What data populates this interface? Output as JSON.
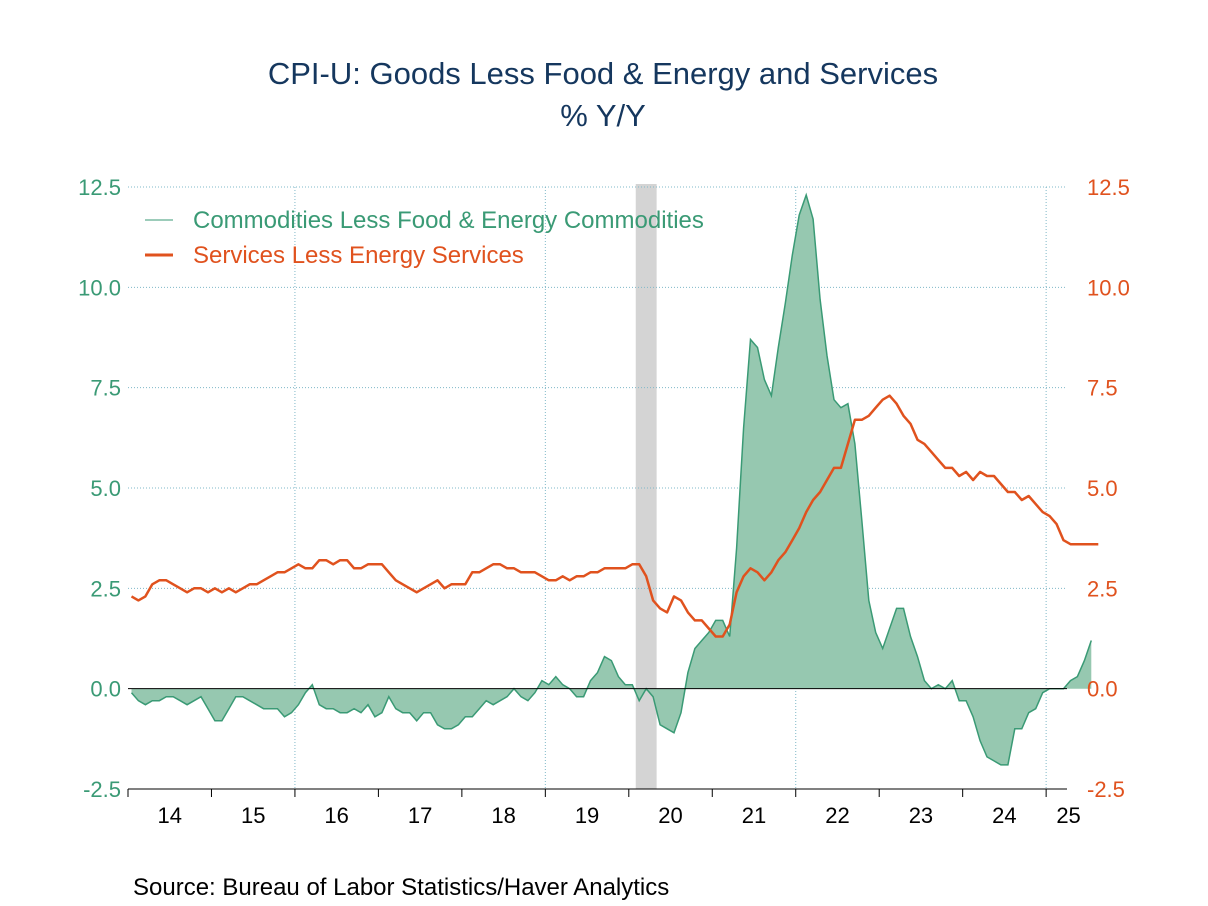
{
  "title_line1": "CPI-U: Goods Less Food & Energy and Services",
  "title_line2": "% Y/Y",
  "source": "Source:  Bureau of Labor Statistics/Haver Analytics",
  "colors": {
    "title": "#15375e",
    "commodities": "#3a9a75",
    "commodities_fill": "#96c8b0",
    "services": "#e0521e",
    "grid": "#7fb8c8",
    "recession": "#d4d4d4",
    "axis": "#000000",
    "year_labels": "#000000"
  },
  "chart_data": {
    "type": "line",
    "x_tick_labels": [
      "14",
      "15",
      "16",
      "17",
      "18",
      "19",
      "20",
      "21",
      "22",
      "23",
      "24",
      "25"
    ],
    "y_left": {
      "ylim": [
        -2.5,
        12.5
      ],
      "tick_labels": [
        "12.5",
        "10.0",
        "7.5",
        "5.0",
        "2.5",
        "0.0",
        "-2.5"
      ]
    },
    "y_right": {
      "ylim": [
        -2.5,
        12.5
      ],
      "tick_labels": [
        "12.5",
        "10.0",
        "7.5",
        "5.0",
        "2.5",
        "0.0",
        "-2.5"
      ]
    },
    "grid": true,
    "legend_position": "top-left",
    "recession_shading": {
      "start": "2020-02",
      "end": "2020-04"
    },
    "series": [
      {
        "name": "Commodities Less Food & Energy Commodities",
        "style": "area",
        "start": "2014-01",
        "frequency": "monthly",
        "values": [
          -0.1,
          -0.3,
          -0.4,
          -0.3,
          -0.3,
          -0.2,
          -0.2,
          -0.3,
          -0.4,
          -0.3,
          -0.2,
          -0.5,
          -0.8,
          -0.8,
          -0.5,
          -0.2,
          -0.2,
          -0.3,
          -0.4,
          -0.5,
          -0.5,
          -0.5,
          -0.7,
          -0.6,
          -0.4,
          -0.1,
          0.1,
          -0.4,
          -0.5,
          -0.5,
          -0.6,
          -0.6,
          -0.5,
          -0.6,
          -0.4,
          -0.7,
          -0.6,
          -0.2,
          -0.5,
          -0.6,
          -0.6,
          -0.8,
          -0.6,
          -0.6,
          -0.9,
          -1.0,
          -1.0,
          -0.9,
          -0.7,
          -0.7,
          -0.5,
          -0.3,
          -0.4,
          -0.3,
          -0.2,
          0.0,
          -0.2,
          -0.3,
          -0.1,
          0.2,
          0.1,
          0.3,
          0.1,
          0.0,
          -0.2,
          -0.2,
          0.2,
          0.4,
          0.8,
          0.7,
          0.3,
          0.1,
          0.1,
          -0.3,
          0.0,
          -0.2,
          -0.9,
          -1.0,
          -1.1,
          -0.6,
          0.4,
          1.0,
          1.2,
          1.4,
          1.7,
          1.7,
          1.3,
          3.5,
          6.5,
          8.7,
          8.5,
          7.7,
          7.3,
          8.5,
          9.6,
          10.8,
          11.8,
          12.3,
          11.7,
          9.7,
          8.3,
          7.2,
          7.0,
          7.1,
          6.1,
          4.2,
          2.2,
          1.4,
          1.0,
          1.5,
          2.0,
          2.0,
          1.3,
          0.8,
          0.2,
          0.0,
          0.1,
          0.0,
          0.2,
          -0.3,
          -0.3,
          -0.7,
          -1.3,
          -1.7,
          -1.8,
          -1.9,
          -1.9,
          -1.0,
          -1.0,
          -0.6,
          -0.5,
          -0.1,
          0.0,
          0.0,
          0.0,
          0.2,
          0.3,
          0.7,
          1.2
        ]
      },
      {
        "name": "Services Less Energy Services",
        "style": "line",
        "start": "2014-01",
        "frequency": "monthly",
        "values": [
          2.3,
          2.2,
          2.3,
          2.6,
          2.7,
          2.7,
          2.6,
          2.5,
          2.4,
          2.5,
          2.5,
          2.4,
          2.5,
          2.4,
          2.5,
          2.4,
          2.5,
          2.6,
          2.6,
          2.7,
          2.8,
          2.9,
          2.9,
          3.0,
          3.1,
          3.0,
          3.0,
          3.2,
          3.2,
          3.1,
          3.2,
          3.2,
          3.0,
          3.0,
          3.1,
          3.1,
          3.1,
          2.9,
          2.7,
          2.6,
          2.5,
          2.4,
          2.5,
          2.6,
          2.7,
          2.5,
          2.6,
          2.6,
          2.6,
          2.9,
          2.9,
          3.0,
          3.1,
          3.1,
          3.0,
          3.0,
          2.9,
          2.9,
          2.9,
          2.8,
          2.7,
          2.7,
          2.8,
          2.7,
          2.8,
          2.8,
          2.9,
          2.9,
          3.0,
          3.0,
          3.0,
          3.0,
          3.1,
          3.1,
          2.8,
          2.2,
          2.0,
          1.9,
          2.3,
          2.2,
          1.9,
          1.7,
          1.7,
          1.5,
          1.3,
          1.3,
          1.6,
          2.4,
          2.8,
          3.0,
          2.9,
          2.7,
          2.9,
          3.2,
          3.4,
          3.7,
          4.0,
          4.4,
          4.7,
          4.9,
          5.2,
          5.5,
          5.5,
          6.1,
          6.7,
          6.7,
          6.8,
          7.0,
          7.2,
          7.3,
          7.1,
          6.8,
          6.6,
          6.2,
          6.1,
          5.9,
          5.7,
          5.5,
          5.5,
          5.3,
          5.4,
          5.2,
          5.4,
          5.3,
          5.3,
          5.1,
          4.9,
          4.9,
          4.7,
          4.8,
          4.6,
          4.4,
          4.3,
          4.1,
          3.7,
          3.6,
          3.6,
          3.6,
          3.6,
          3.6
        ]
      }
    ]
  }
}
